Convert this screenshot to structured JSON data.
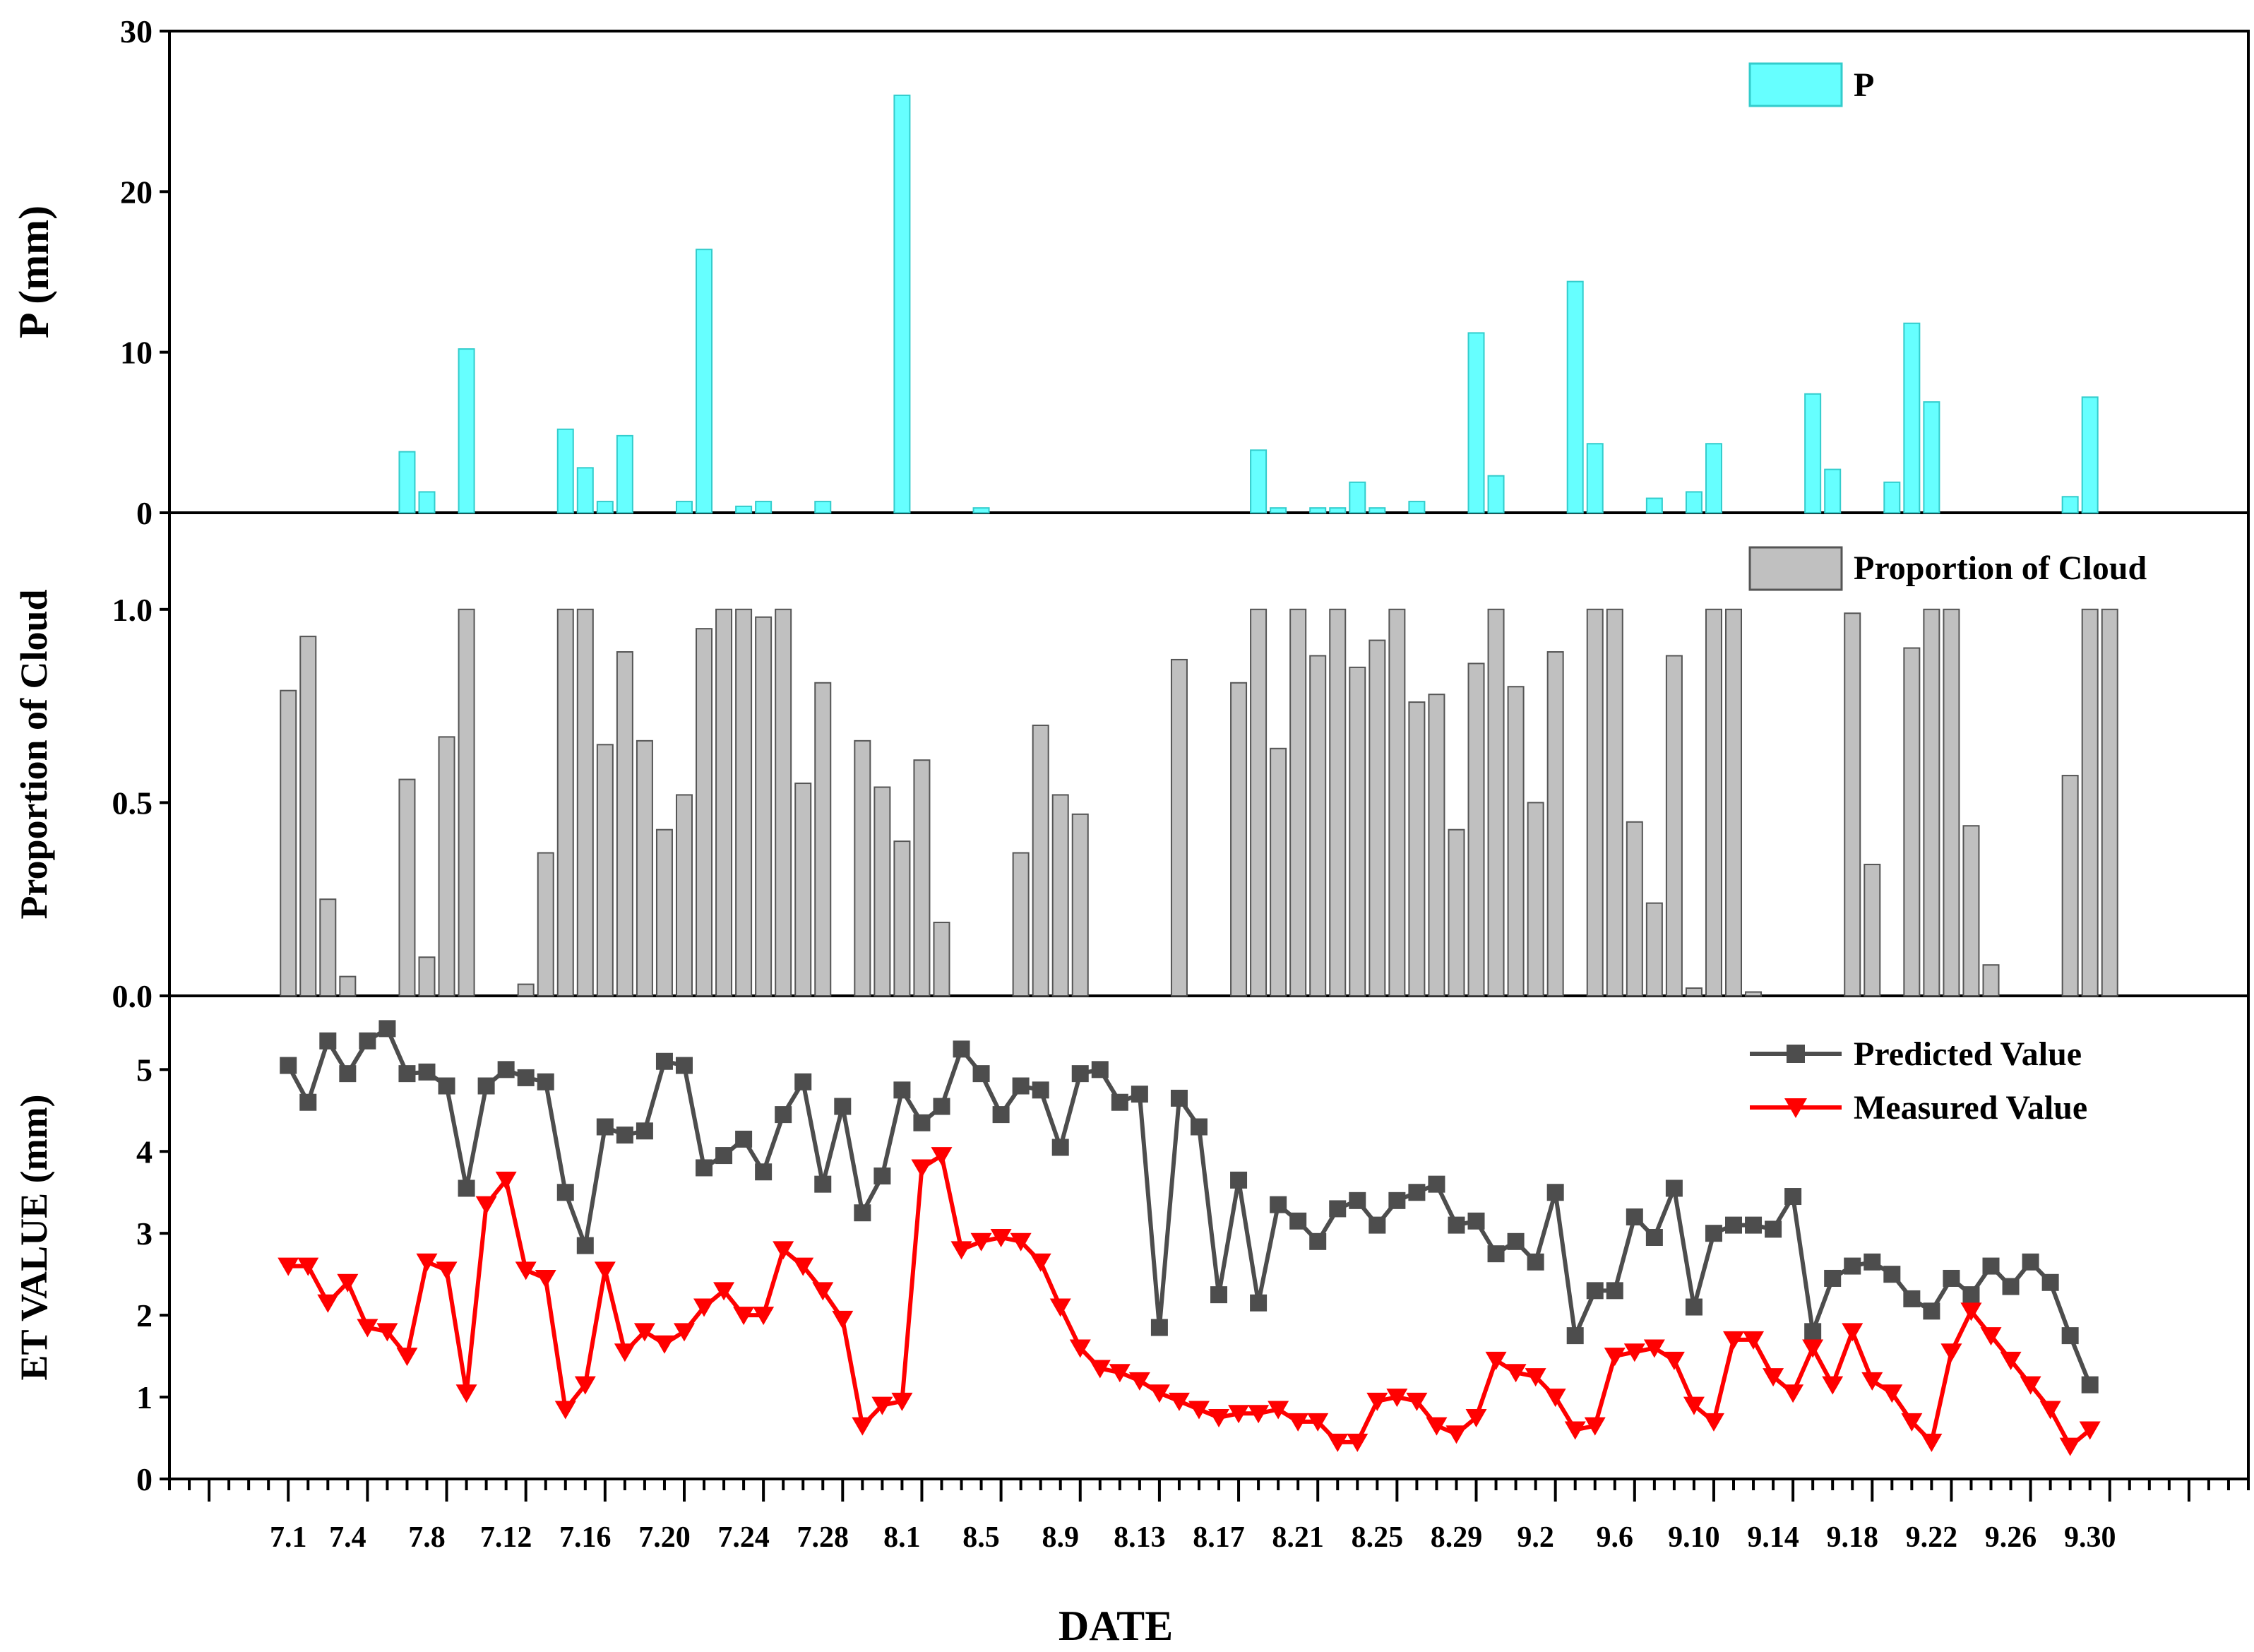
{
  "chart_data": [
    {
      "type": "bar",
      "title": "",
      "xlabel": "",
      "ylabel": "P (mm)",
      "ylim": [
        0,
        30
      ],
      "yticks": [
        0,
        10,
        20,
        30
      ],
      "series": [
        {
          "name": "P",
          "color": "#66FFFF",
          "edge_color": "#33CCCC",
          "points": [
            {
              "day": 7,
              "value": 3.8
            },
            {
              "day": 8,
              "value": 1.3
            },
            {
              "day": 10,
              "value": 10.2
            },
            {
              "day": 15,
              "value": 5.2
            },
            {
              "day": 16,
              "value": 2.8
            },
            {
              "day": 17,
              "value": 0.7
            },
            {
              "day": 18,
              "value": 4.8
            },
            {
              "day": 21,
              "value": 0.7
            },
            {
              "day": 22,
              "value": 16.4
            },
            {
              "day": 24,
              "value": 0.4
            },
            {
              "day": 25,
              "value": 0.7
            },
            {
              "day": 28,
              "value": 0.7
            },
            {
              "day": 32,
              "value": 26.0
            },
            {
              "day": 36,
              "value": 0.3
            },
            {
              "day": 50,
              "value": 3.9
            },
            {
              "day": 51,
              "value": 0.3
            },
            {
              "day": 53,
              "value": 0.3
            },
            {
              "day": 54,
              "value": 0.3
            },
            {
              "day": 55,
              "value": 1.9
            },
            {
              "day": 56,
              "value": 0.3
            },
            {
              "day": 58,
              "value": 0.7
            },
            {
              "day": 61,
              "value": 11.2
            },
            {
              "day": 62,
              "value": 2.3
            },
            {
              "day": 66,
              "value": 14.4
            },
            {
              "day": 67,
              "value": 4.3
            },
            {
              "day": 70,
              "value": 0.9
            },
            {
              "day": 72,
              "value": 1.3
            },
            {
              "day": 73,
              "value": 4.3
            },
            {
              "day": 78,
              "value": 7.4
            },
            {
              "day": 79,
              "value": 2.7
            },
            {
              "day": 82,
              "value": 1.9
            },
            {
              "day": 83,
              "value": 11.8
            },
            {
              "day": 84,
              "value": 6.9
            },
            {
              "day": 91,
              "value": 1.0
            },
            {
              "day": 92,
              "value": 7.2
            }
          ]
        }
      ],
      "legend": [
        {
          "label": "P",
          "position": "top-right"
        }
      ]
    },
    {
      "type": "bar",
      "title": "",
      "xlabel": "",
      "ylabel": "Proportion of Cloud",
      "ylim": [
        0,
        1.25
      ],
      "yticks": [
        "0.0",
        "0.5",
        "1.0"
      ],
      "series": [
        {
          "name": "Proportion of Cloud",
          "color": "#C0C0C0",
          "edge_color": "#555555",
          "points": [
            {
              "day": 1,
              "value": 0.79
            },
            {
              "day": 2,
              "value": 0.93
            },
            {
              "day": 3,
              "value": 0.25
            },
            {
              "day": 4,
              "value": 0.05
            },
            {
              "day": 7,
              "value": 0.56
            },
            {
              "day": 8,
              "value": 0.1
            },
            {
              "day": 9,
              "value": 0.67
            },
            {
              "day": 10,
              "value": 1.0
            },
            {
              "day": 13,
              "value": 0.03
            },
            {
              "day": 14,
              "value": 0.37
            },
            {
              "day": 15,
              "value": 1.0
            },
            {
              "day": 16,
              "value": 1.0
            },
            {
              "day": 17,
              "value": 0.65
            },
            {
              "day": 18,
              "value": 0.89
            },
            {
              "day": 19,
              "value": 0.66
            },
            {
              "day": 20,
              "value": 0.43
            },
            {
              "day": 21,
              "value": 0.52
            },
            {
              "day": 22,
              "value": 0.95
            },
            {
              "day": 23,
              "value": 1.0
            },
            {
              "day": 24,
              "value": 1.0
            },
            {
              "day": 25,
              "value": 0.98
            },
            {
              "day": 26,
              "value": 1.0
            },
            {
              "day": 27,
              "value": 0.55
            },
            {
              "day": 28,
              "value": 0.81
            },
            {
              "day": 30,
              "value": 0.66
            },
            {
              "day": 31,
              "value": 0.54
            },
            {
              "day": 32,
              "value": 0.4
            },
            {
              "day": 33,
              "value": 0.61
            },
            {
              "day": 34,
              "value": 0.19
            },
            {
              "day": 38,
              "value": 0.37
            },
            {
              "day": 39,
              "value": 0.7
            },
            {
              "day": 40,
              "value": 0.52
            },
            {
              "day": 41,
              "value": 0.47
            },
            {
              "day": 46,
              "value": 0.87
            },
            {
              "day": 49,
              "value": 0.81
            },
            {
              "day": 50,
              "value": 1.0
            },
            {
              "day": 51,
              "value": 0.64
            },
            {
              "day": 52,
              "value": 1.0
            },
            {
              "day": 53,
              "value": 0.88
            },
            {
              "day": 54,
              "value": 1.0
            },
            {
              "day": 55,
              "value": 0.85
            },
            {
              "day": 56,
              "value": 0.92
            },
            {
              "day": 57,
              "value": 1.0
            },
            {
              "day": 58,
              "value": 0.76
            },
            {
              "day": 59,
              "value": 0.78
            },
            {
              "day": 60,
              "value": 0.43
            },
            {
              "day": 61,
              "value": 0.86
            },
            {
              "day": 62,
              "value": 1.0
            },
            {
              "day": 63,
              "value": 0.8
            },
            {
              "day": 64,
              "value": 0.5
            },
            {
              "day": 65,
              "value": 0.89
            },
            {
              "day": 67,
              "value": 1.0
            },
            {
              "day": 68,
              "value": 1.0
            },
            {
              "day": 69,
              "value": 0.45
            },
            {
              "day": 70,
              "value": 0.24
            },
            {
              "day": 71,
              "value": 0.88
            },
            {
              "day": 72,
              "value": 0.02
            },
            {
              "day": 73,
              "value": 1.0
            },
            {
              "day": 74,
              "value": 1.0
            },
            {
              "day": 75,
              "value": 0.01
            },
            {
              "day": 80,
              "value": 0.99
            },
            {
              "day": 81,
              "value": 0.34
            },
            {
              "day": 83,
              "value": 0.9
            },
            {
              "day": 84,
              "value": 1.0
            },
            {
              "day": 85,
              "value": 1.0
            },
            {
              "day": 86,
              "value": 0.44
            },
            {
              "day": 87,
              "value": 0.08
            },
            {
              "day": 91,
              "value": 0.57
            },
            {
              "day": 92,
              "value": 1.0
            },
            {
              "day": 93,
              "value": 1.0
            }
          ]
        }
      ],
      "legend": [
        {
          "label": "Proportion of Cloud",
          "position": "top-right"
        }
      ]
    },
    {
      "type": "line",
      "title": "",
      "xlabel": "DATE",
      "ylabel": "ET VALUE (mm)",
      "ylim": [
        0,
        5.9
      ],
      "yticks": [
        0,
        1,
        2,
        3,
        4,
        5
      ],
      "x_day_range": [
        -5,
        100
      ],
      "x_tick_labels": [
        "7.1",
        "7.4",
        "7.8",
        "7.12",
        "7.16",
        "7.20",
        "7.24",
        "7.28",
        "8.1",
        "8.5",
        "8.9",
        "8.13",
        "8.17",
        "8.21",
        "8.25",
        "8.29",
        "9.2",
        "9.6",
        "9.10",
        "9.14",
        "9.18",
        "9.22",
        "9.26",
        "9.30"
      ],
      "series": [
        {
          "name": "Predicted Value",
          "color": "#4D4D4D",
          "marker": "square",
          "x_days": [
            1,
            2,
            3,
            4,
            5,
            6,
            7,
            8,
            9,
            10,
            11,
            12,
            13,
            14,
            15,
            16,
            17,
            18,
            19,
            20,
            21,
            22,
            23,
            24,
            25,
            26,
            27,
            28,
            29,
            30,
            31,
            32,
            33,
            34,
            35,
            36,
            37,
            38,
            39,
            40,
            41,
            42,
            43,
            44,
            45,
            46,
            47,
            48,
            49,
            50,
            51,
            52,
            53,
            54,
            55,
            56,
            57,
            58,
            59,
            60,
            61,
            62,
            63,
            64,
            65,
            66,
            67,
            68,
            69,
            70,
            71,
            72,
            73,
            74,
            75,
            76,
            77,
            78,
            79,
            80,
            81,
            82,
            83,
            84,
            85,
            86,
            87,
            88,
            89,
            90,
            91,
            92
          ],
          "values": [
            5.05,
            4.6,
            5.35,
            4.95,
            5.35,
            5.5,
            4.95,
            4.97,
            4.8,
            3.55,
            4.8,
            5.0,
            4.9,
            4.85,
            3.5,
            2.85,
            4.3,
            4.2,
            4.25,
            5.1,
            5.05,
            3.8,
            3.95,
            4.15,
            3.75,
            4.45,
            4.85,
            3.6,
            4.55,
            3.25,
            3.7,
            4.75,
            4.35,
            4.55,
            5.25,
            4.95,
            4.45,
            4.8,
            4.75,
            4.05,
            4.95,
            5.0,
            4.6,
            4.7,
            1.85,
            4.65,
            4.3,
            2.25,
            3.65,
            2.15,
            3.35,
            3.15,
            2.9,
            3.3,
            3.4,
            3.1,
            3.4,
            3.5,
            3.6,
            3.1,
            3.15,
            2.75,
            2.9,
            2.65,
            3.5,
            1.75,
            2.3,
            2.3,
            3.2,
            2.95,
            3.55,
            2.1,
            3.0,
            3.1,
            3.1,
            3.05,
            3.45,
            1.8,
            2.45,
            2.6,
            2.65,
            2.5,
            2.2,
            2.05,
            2.45,
            2.25,
            2.6,
            2.35,
            2.65,
            2.4,
            1.75,
            1.15
          ]
        },
        {
          "name": "Measured Value",
          "color": "#FF0000",
          "marker": "triangle-down",
          "x_days": [
            1,
            2,
            3,
            4,
            5,
            6,
            7,
            8,
            9,
            10,
            11,
            12,
            13,
            14,
            15,
            16,
            17,
            18,
            19,
            20,
            21,
            22,
            23,
            24,
            25,
            26,
            27,
            28,
            29,
            30,
            31,
            32,
            33,
            34,
            35,
            36,
            37,
            38,
            39,
            40,
            41,
            42,
            43,
            44,
            45,
            46,
            47,
            48,
            49,
            50,
            51,
            52,
            53,
            54,
            55,
            56,
            57,
            58,
            59,
            60,
            61,
            62,
            63,
            64,
            65,
            66,
            67,
            68,
            69,
            70,
            71,
            72,
            73,
            74,
            75,
            76,
            77,
            78,
            79,
            80,
            81,
            82,
            83,
            84,
            85,
            86,
            87,
            88,
            89,
            90,
            91,
            92
          ],
          "values": [
            2.6,
            2.6,
            2.15,
            2.4,
            1.85,
            1.8,
            1.5,
            2.65,
            2.55,
            1.05,
            3.35,
            3.65,
            2.55,
            2.45,
            0.85,
            1.15,
            2.55,
            1.55,
            1.8,
            1.65,
            1.8,
            2.1,
            2.3,
            2.0,
            2.0,
            2.8,
            2.6,
            2.3,
            1.95,
            0.65,
            0.9,
            0.95,
            3.8,
            3.95,
            2.8,
            2.9,
            2.95,
            2.9,
            2.65,
            2.1,
            1.6,
            1.35,
            1.3,
            1.2,
            1.05,
            0.95,
            0.85,
            0.75,
            0.8,
            0.8,
            0.85,
            0.7,
            0.7,
            0.45,
            0.45,
            0.95,
            1.0,
            0.95,
            0.65,
            0.55,
            0.75,
            1.45,
            1.3,
            1.25,
            1.0,
            0.6,
            0.65,
            1.5,
            1.55,
            1.6,
            1.45,
            0.9,
            0.7,
            1.7,
            1.7,
            1.25,
            1.05,
            1.6,
            1.15,
            1.8,
            1.2,
            1.05,
            0.7,
            0.45,
            1.55,
            2.05,
            1.75,
            1.45,
            1.15,
            0.85,
            0.4,
            0.6
          ]
        }
      ],
      "legend": [
        {
          "label": "Predicted Value",
          "position": "top-right"
        },
        {
          "label": "Measured Value",
          "position": "top-right"
        }
      ]
    }
  ]
}
